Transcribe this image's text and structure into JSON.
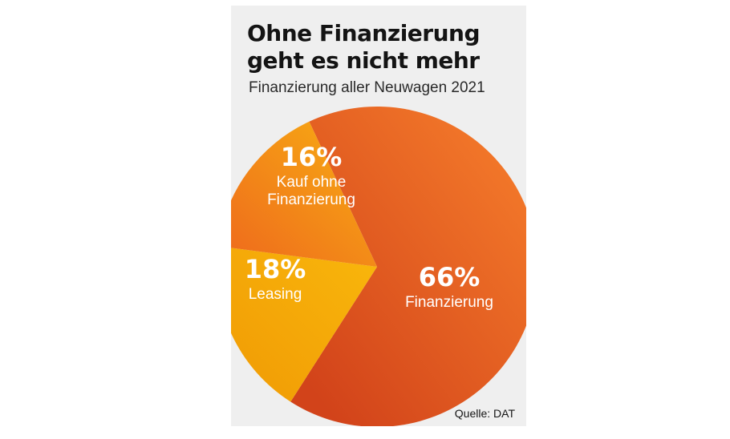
{
  "chart_data": {
    "type": "pie",
    "title": "Ohne Finanzierung\ngeht es nicht mehr",
    "subtitle": "Finanzierung aller Neuwagen 2021",
    "source": "Quelle: DAT",
    "slices": [
      {
        "label": "Finanzierung",
        "value": 66,
        "pct_label": "66%",
        "color_light": "#f47a2a",
        "color_dark": "#d2431a"
      },
      {
        "label": "Leasing",
        "value": 18,
        "pct_label": "18%",
        "color_light": "#f8b40b",
        "color_dark": "#f19c05"
      },
      {
        "label": "Kauf ohne\nFinanzierung",
        "value": 16,
        "pct_label": "16%",
        "color_light": "#f7a813",
        "color_dark": "#ef6e1c"
      }
    ]
  }
}
